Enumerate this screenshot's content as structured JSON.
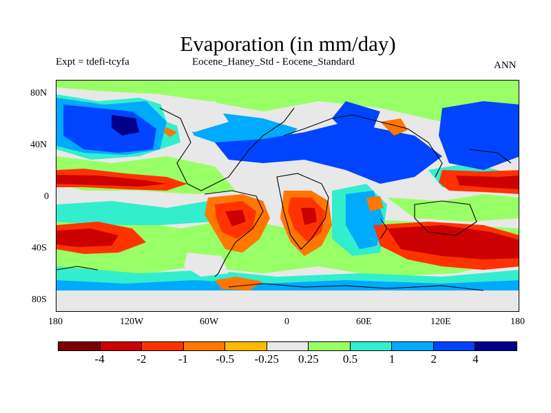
{
  "title": "Evaporation (in mm/day)",
  "subtitle_left": "Expt = tdefi-tcyfa",
  "subtitle_center": "Eocene_Haney_Std - Eocene_Standard",
  "subtitle_right": "ANN",
  "lat_ticks": [
    "80N",
    "40N",
    "0",
    "40S",
    "80S"
  ],
  "lon_ticks": [
    "180",
    "120W",
    "60W",
    "0",
    "60E",
    "120E",
    "180"
  ],
  "colorbar": {
    "colors": [
      "#7a0000",
      "#cc0000",
      "#ff3300",
      "#ff7700",
      "#ffbb00",
      "#e8e8e8",
      "#99ff66",
      "#33eecc",
      "#00aaff",
      "#0044ff",
      "#000088"
    ],
    "labels": [
      "-4",
      "-2",
      "-1",
      "-0.5",
      "-0.25",
      "0.25",
      "0.5",
      "1",
      "2",
      "4"
    ]
  }
}
